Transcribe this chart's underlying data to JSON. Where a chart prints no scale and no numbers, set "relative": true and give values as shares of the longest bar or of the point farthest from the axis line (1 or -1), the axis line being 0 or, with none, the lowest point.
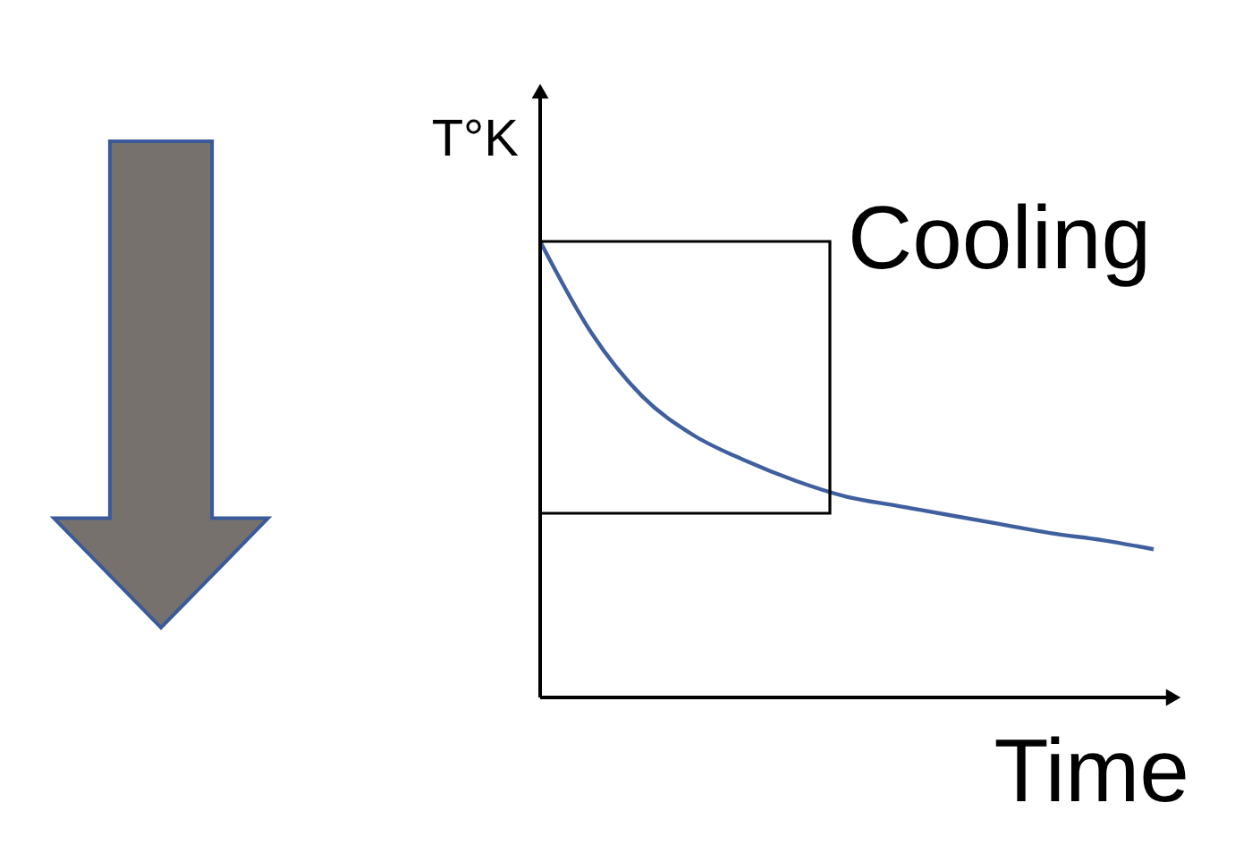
{
  "chart_data": {
    "type": "line",
    "relative": true,
    "ylabel": "T°K",
    "xlabel": "Time",
    "categories": [
      null,
      null,
      null,
      null,
      null,
      null,
      null,
      null,
      null,
      null,
      null,
      null,
      null
    ],
    "series": [
      {
        "color": "#3f5f9f",
        "line_style": "solid",
        "values": [
          1.0,
          0.8,
          0.66,
          0.575,
          0.52,
          0.475,
          0.44,
          0.42,
          0.4,
          0.38,
          0.36,
          0.345,
          0.325
        ]
      }
    ],
    "annotations": [
      "Cooling"
    ]
  }
}
